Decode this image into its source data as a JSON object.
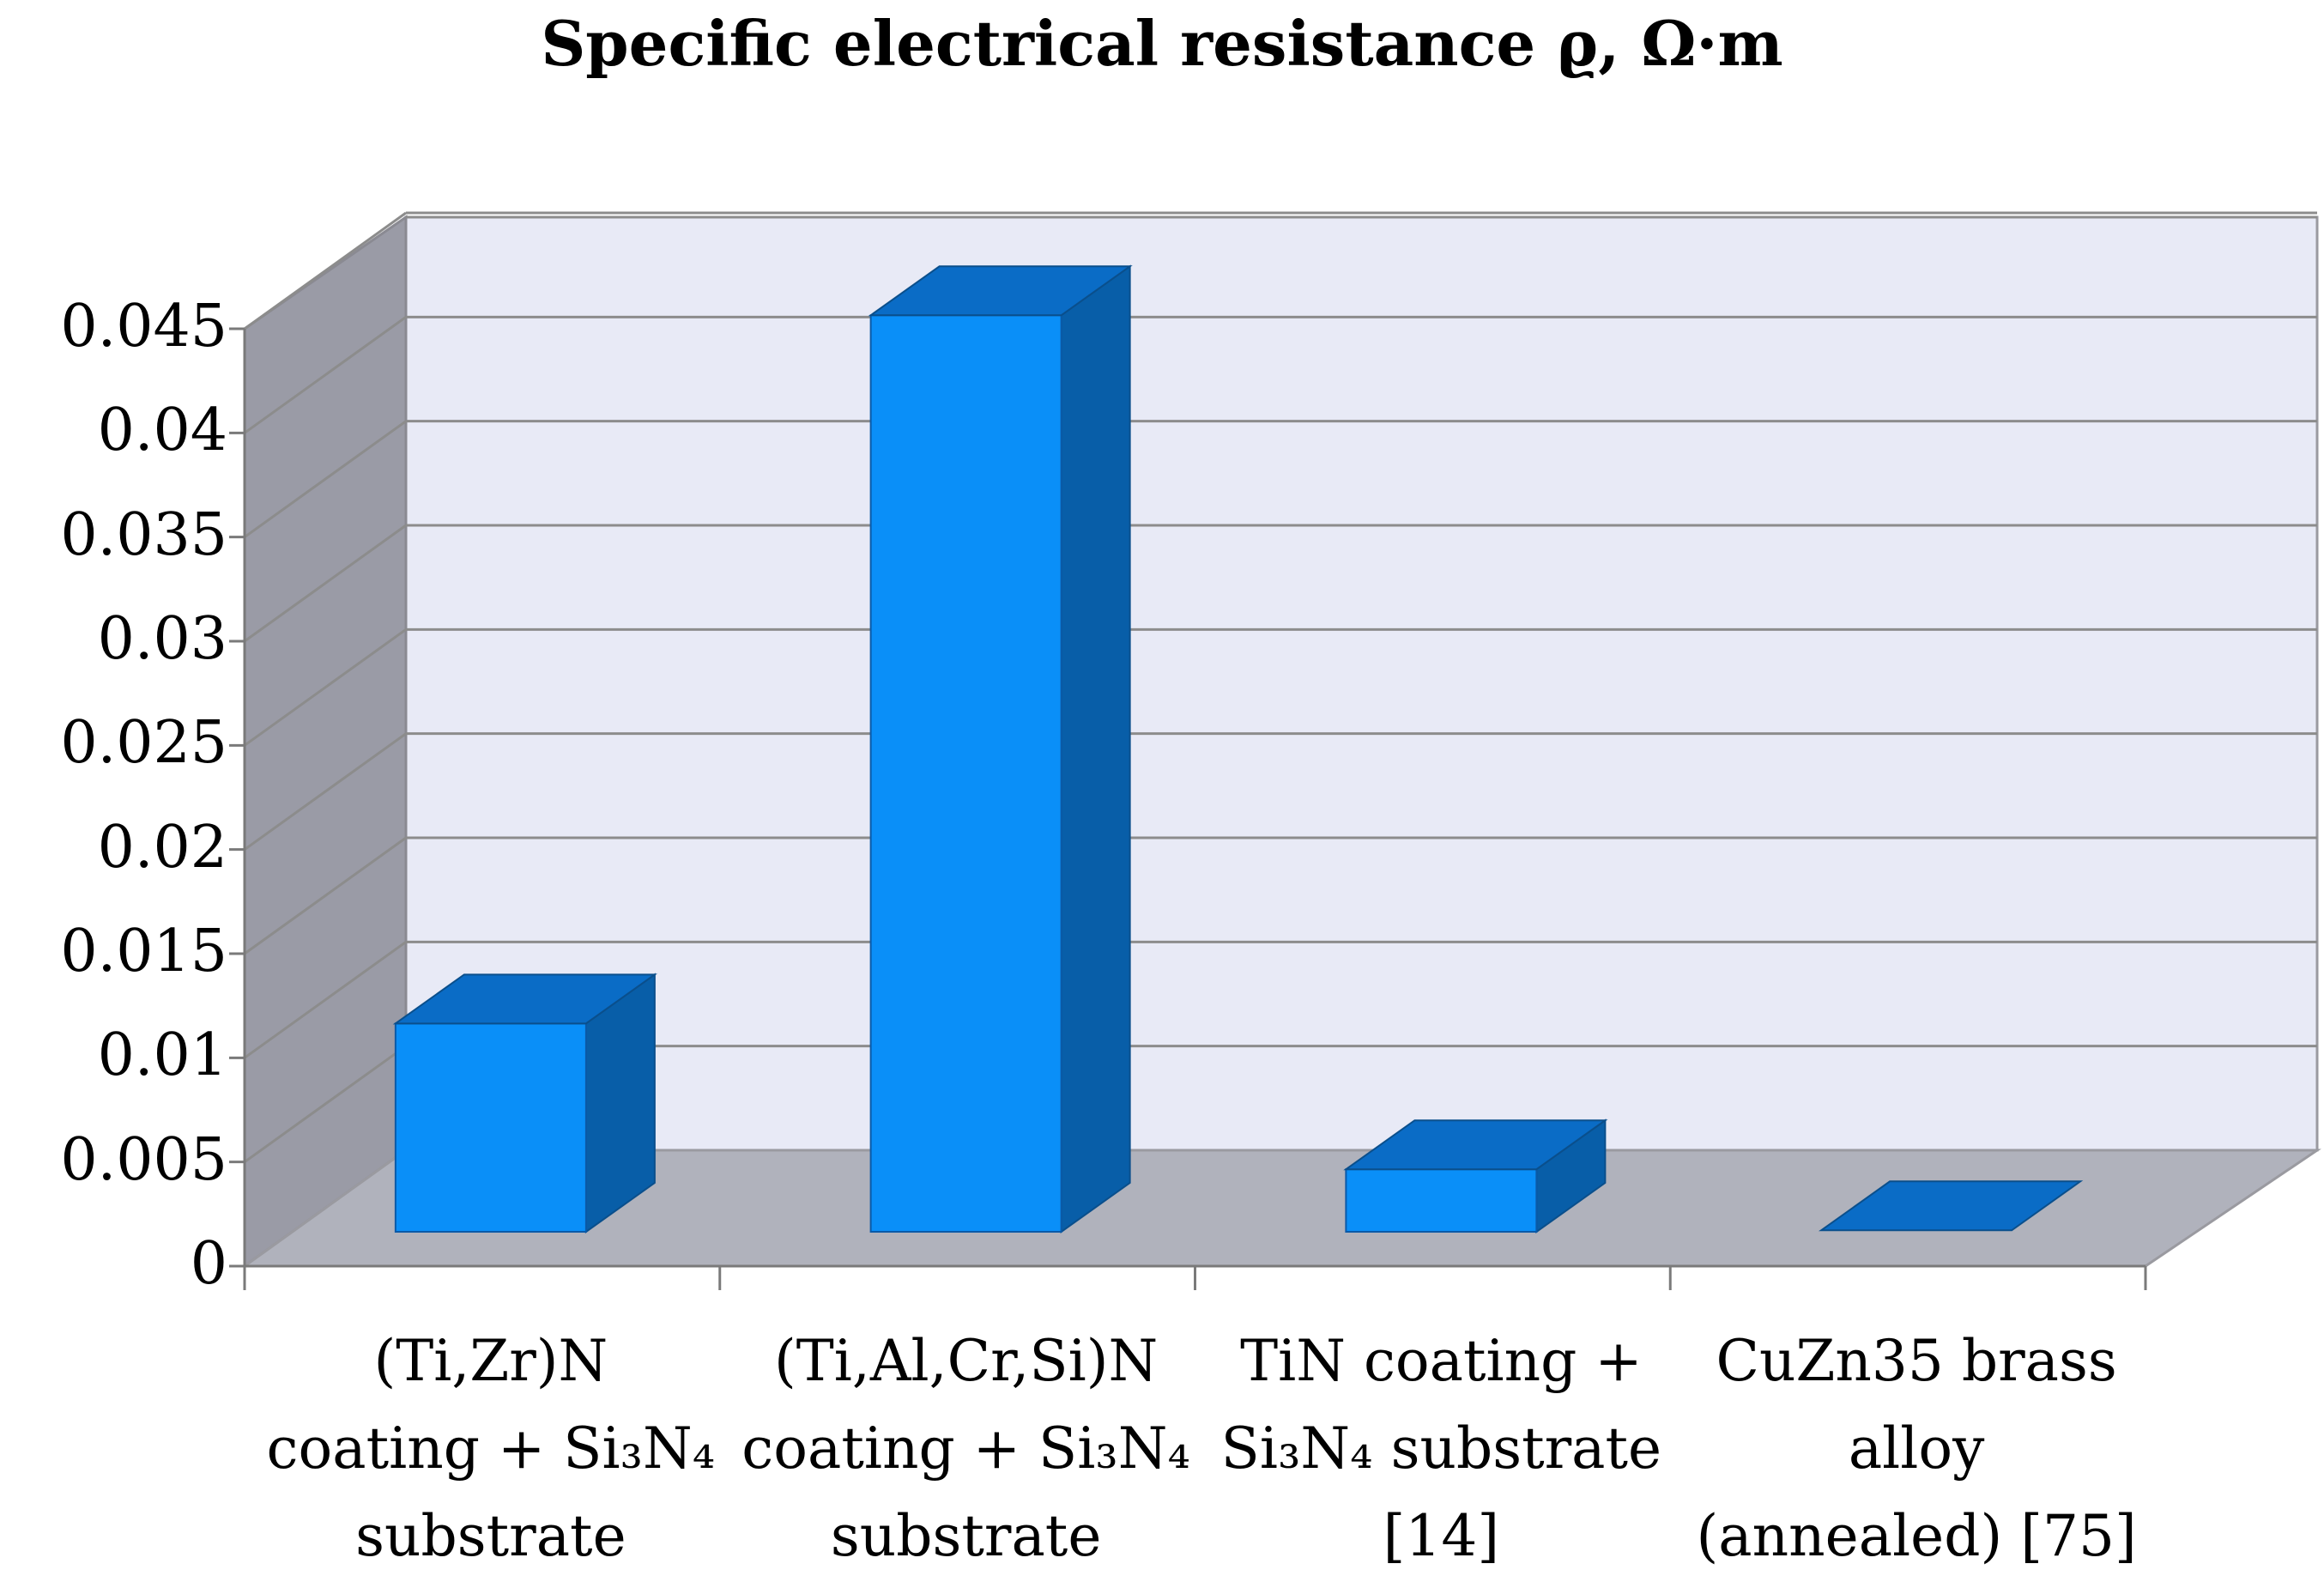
{
  "chart_data": {
    "type": "bar",
    "title": "Specific electrical resistance ϱ, Ω·m",
    "xlabel": "",
    "ylabel": "",
    "ylim": [
      0,
      0.045
    ],
    "yticks": [
      "0",
      "0.005",
      "0.01",
      "0.015",
      "0.02",
      "0.025",
      "0.03",
      "0.035",
      "0.04",
      "0.045"
    ],
    "categories": [
      [
        "(Ti,Zr)N",
        "coating + Si₃N₄",
        "substrate"
      ],
      [
        "(Ti,Al,Cr,Si)N",
        "coating + Si₃N₄",
        "substrate"
      ],
      [
        "TiN   coating +",
        "Si₃N₄ substrate",
        "[14]"
      ],
      [
        "CuZn35 brass",
        "alloy",
        "(annealed) [75]"
      ]
    ],
    "values": [
      0.01,
      0.044,
      0.003,
      7e-05
    ],
    "grid": true,
    "legend": "none",
    "style": "3d",
    "colors": {
      "bar_front": "#0a8ff8",
      "bar_top": "#0a6cc6",
      "bar_side": "#085ea8",
      "back_wall": "#e8eaf6",
      "side_wall": "#9a9ba6",
      "floor": "#b0b2bc",
      "grid": "#8c8c8c"
    }
  }
}
